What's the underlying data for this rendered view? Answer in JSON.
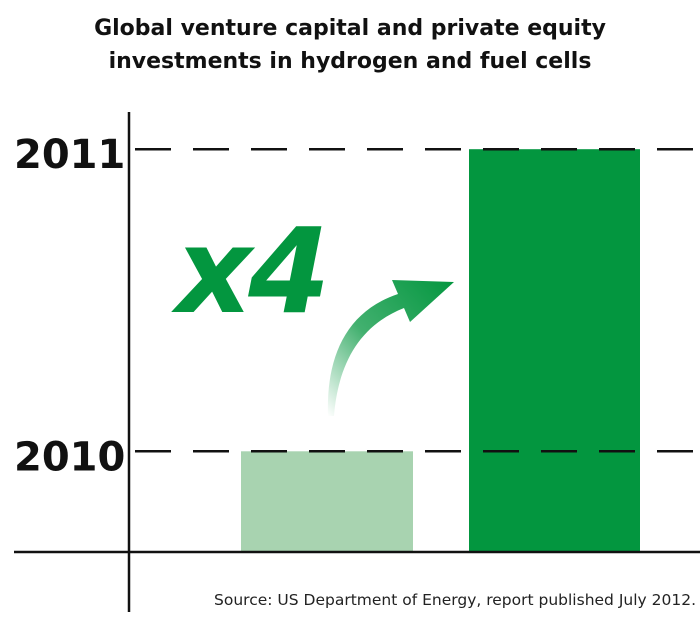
{
  "chart_data": {
    "type": "bar",
    "title_lines": [
      "Global venture capital and private equity",
      "investments in hydrogen and fuel cells"
    ],
    "categories": [
      "2010",
      "2011"
    ],
    "values": [
      1,
      4
    ],
    "ylim": [
      0,
      4
    ],
    "gridlines": "dashed",
    "annotation": "x4",
    "source": "Source: US Department of Energy, report published July 2012.",
    "colors": {
      "bar_2010": "#a8d3b0",
      "bar_2011": "#03963f",
      "annotation": "#03963f",
      "axis": "#111111"
    }
  }
}
